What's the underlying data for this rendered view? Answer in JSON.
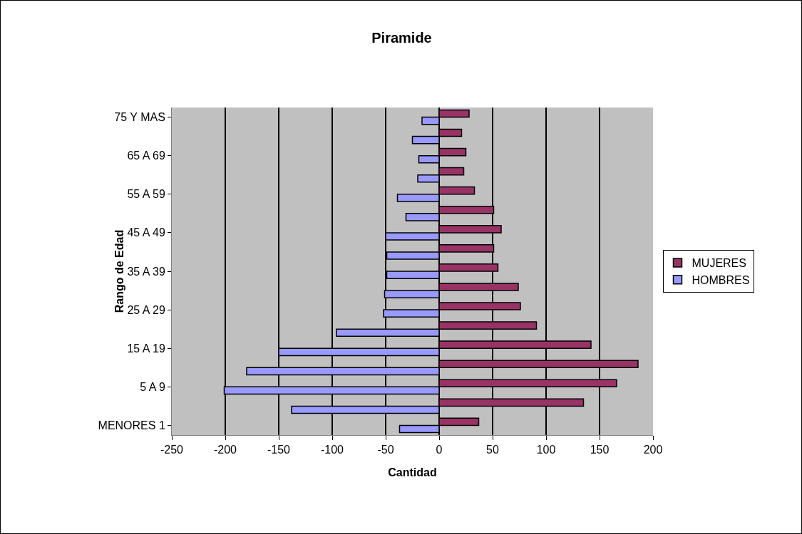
{
  "chart_data": {
    "type": "bar",
    "orientation": "horizontal",
    "title": "Piramide",
    "xlabel": "Cantidad",
    "ylabel": "Rango de Edad",
    "categories": [
      "75 Y MAS",
      null,
      "65 A 69",
      null,
      "55 A 59",
      null,
      "45 A 49",
      null,
      "35 A 39",
      null,
      "25 A 29",
      null,
      "15 A 19",
      null,
      "5 A 9",
      null,
      "MENORES 1"
    ],
    "series": [
      {
        "name": "MUJERES",
        "color": "#993366",
        "values": [
          28,
          21,
          25,
          23,
          33,
          51,
          58,
          51,
          55,
          74,
          76,
          91,
          142,
          186,
          166,
          135,
          37
        ]
      },
      {
        "name": "HOMBRES",
        "color": "#9999ff",
        "values": [
          -16,
          -25,
          -19,
          -20,
          -39,
          -31,
          -50,
          -49,
          -49,
          -51,
          -52,
          -96,
          -150,
          -180,
          -201,
          -138,
          -37
        ]
      }
    ],
    "xlim": [
      -250,
      200
    ],
    "xticks": [
      -250,
      -200,
      -150,
      -100,
      -50,
      0,
      50,
      100,
      150,
      200
    ],
    "grid": "x",
    "legend": "right"
  }
}
